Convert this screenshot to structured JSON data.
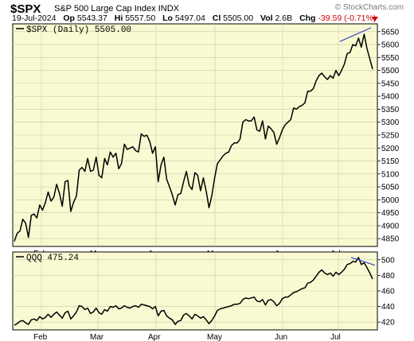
{
  "header": {
    "symbol": "$SPX",
    "name": "S&P 500 Large Cap Index",
    "exchange": "INDX",
    "watermark": "© StockCharts.com",
    "date": "19-Jul-2024",
    "open_label": "Op",
    "open": "5543.37",
    "high_label": "Hi",
    "high": "5557.50",
    "low_label": "Lo",
    "low": "5497.04",
    "close_label": "Cl",
    "close": "5505.00",
    "vol_label": "Vol",
    "vol": "2.6B",
    "chg_label": "Chg",
    "chg": "-39.59 (-0.71%)"
  },
  "colors": {
    "panel": "#fafad2",
    "line": "#000000",
    "trend": "#3344cc",
    "down": "#cc0000"
  },
  "chart_data": [
    {
      "type": "line",
      "panel_label": "$SPX (Daily) 5505.00",
      "series_name": "$SPX (Daily)",
      "x_tick_labels": [
        "Feb",
        "Mar",
        "Apr",
        "May",
        "Jun",
        "Jul"
      ],
      "y_ticks": [
        4850,
        4900,
        4950,
        5000,
        5050,
        5100,
        5150,
        5200,
        5250,
        5300,
        5350,
        5400,
        5450,
        5500,
        5550,
        5600,
        5650
      ],
      "ylim": [
        4820,
        5680
      ],
      "grid": true,
      "values": [
        4840,
        4870,
        4880,
        4925,
        4910,
        4855,
        4940,
        4945,
        4930,
        4980,
        4960,
        4990,
        5030,
        4995,
        5010,
        5060,
        5025,
        4975,
        5070,
        5075,
        4955,
        4990,
        5015,
        5115,
        5125,
        5110,
        5160,
        5110,
        5115,
        5165,
        5095,
        5085,
        5160,
        5135,
        5185,
        5165,
        5180,
        5120,
        5140,
        5215,
        5195,
        5200,
        5205,
        5190,
        5185,
        5255,
        5245,
        5250,
        5225,
        5180,
        5205,
        5070,
        5135,
        5165,
        5080,
        5050,
        5020,
        4980,
        5020,
        5025,
        5070,
        5110,
        5055,
        5040,
        5105,
        5095,
        5035,
        5085,
        5035,
        4970,
        5015,
        5085,
        5140,
        5155,
        5170,
        5180,
        5185,
        5210,
        5220,
        5220,
        5235,
        5300,
        5310,
        5305,
        5305,
        5320,
        5270,
        5265,
        5305,
        5235,
        5285,
        5275,
        5260,
        5215,
        5240,
        5270,
        5290,
        5300,
        5310,
        5355,
        5350,
        5360,
        5365,
        5375,
        5420,
        5420,
        5430,
        5460,
        5480,
        5490,
        5475,
        5465,
        5480,
        5470,
        5500,
        5480,
        5500,
        5525,
        5565,
        5570,
        5600,
        5595,
        5625,
        5590,
        5640,
        5585,
        5545,
        5505
      ],
      "trendline": {
        "values": [
          5612,
          5665
        ]
      }
    },
    {
      "type": "line",
      "panel_label": "QQQ 475.24",
      "series_name": "QQQ",
      "x_tick_labels": [
        "Feb",
        "Mar",
        "Apr",
        "May",
        "Jun",
        "Jul"
      ],
      "y_ticks": [
        420,
        440,
        460,
        480,
        500
      ],
      "ylim": [
        410,
        510
      ],
      "grid": true,
      "values": [
        416,
        418,
        421,
        422,
        419,
        417,
        423,
        424,
        422,
        427,
        424,
        426,
        430,
        426,
        430,
        433,
        429,
        425,
        432,
        434,
        424,
        428,
        433,
        441,
        440,
        436,
        438,
        431,
        433,
        438,
        432,
        430,
        436,
        434,
        440,
        439,
        441,
        437,
        438,
        441,
        439,
        438,
        440,
        441,
        439,
        443,
        442,
        441,
        440,
        437,
        440,
        428,
        434,
        435,
        428,
        425,
        423,
        417,
        421,
        422,
        429,
        431,
        428,
        424,
        430,
        428,
        425,
        427,
        423,
        418,
        422,
        428,
        435,
        437,
        438,
        439,
        440,
        441,
        443,
        443,
        444,
        449,
        451,
        450,
        451,
        452,
        447,
        446,
        449,
        442,
        448,
        449,
        446,
        441,
        444,
        450,
        452,
        452,
        455,
        458,
        459,
        461,
        463,
        464,
        470,
        471,
        474,
        479,
        484,
        487,
        483,
        481,
        483,
        479,
        484,
        481,
        484,
        488,
        494,
        495,
        498,
        497,
        503,
        494,
        496,
        490,
        483,
        475.24
      ],
      "trendline": {
        "values": [
          503,
          493
        ]
      }
    }
  ]
}
